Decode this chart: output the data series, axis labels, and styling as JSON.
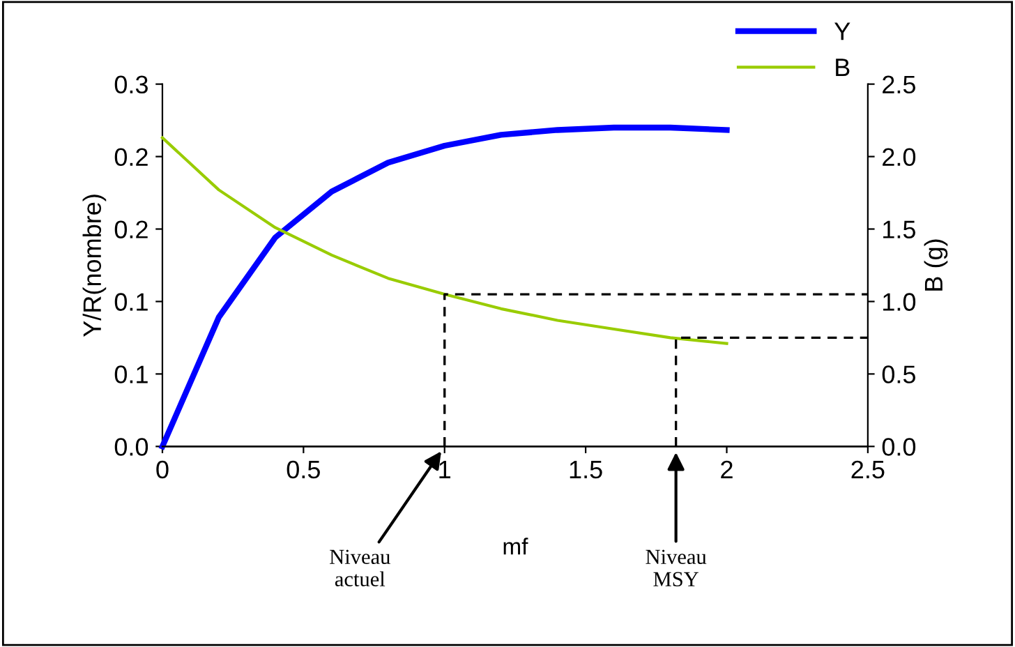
{
  "chart_data": {
    "type": "line",
    "xlabel": "mf",
    "ylabel": "Y/R(nombre)",
    "y2label": "B (g)",
    "x": [
      0,
      0.2,
      0.4,
      0.6,
      0.8,
      1.0,
      1.2,
      1.4,
      1.6,
      1.8,
      2.0
    ],
    "series": [
      {
        "name": "Y",
        "color": "#0000ff",
        "values": [
          0,
          0.107,
          0.173,
          0.211,
          0.235,
          0.249,
          0.258,
          0.262,
          0.264,
          0.264,
          0.262
        ]
      },
      {
        "name": "B",
        "color": "#99cc00",
        "axis": "y2",
        "values": [
          2.13,
          1.77,
          1.51,
          1.32,
          1.16,
          1.05,
          0.95,
          0.87,
          0.81,
          0.75,
          0.71
        ]
      },
      {
        "type": "line",
        "color": "#000000",
        "line_style": "dashed",
        "axis": "y2",
        "x": [
          1,
          1,
          2.5
        ],
        "values": [
          0,
          1.05,
          1.05
        ]
      },
      {
        "type": "line",
        "color": "#000000",
        "line_style": "dashed",
        "axis": "y2",
        "x": [
          1.82,
          1.82,
          2.5
        ],
        "values": [
          0,
          0.75,
          0.75
        ]
      }
    ],
    "xlim": [
      0,
      2.5
    ],
    "xticks": [
      0,
      0.5,
      1,
      1.5,
      2,
      2.5
    ],
    "ylim": [
      0,
      0.3
    ],
    "yticks": [
      {
        "value": 0,
        "label": "0.0"
      },
      {
        "value": 0.06,
        "label": "0.1"
      },
      {
        "value": 0.12,
        "label": "0.1"
      },
      {
        "value": 0.18,
        "label": "0.2"
      },
      {
        "value": 0.24,
        "label": "0.2"
      },
      {
        "value": 0.3,
        "label": "0.3"
      }
    ],
    "y2lim": [
      0,
      2.5
    ],
    "y2ticks": [
      {
        "value": 0,
        "label": "0.0"
      },
      {
        "value": 0.5,
        "label": "0.5"
      },
      {
        "value": 1.0,
        "label": "1.0"
      },
      {
        "value": 1.5,
        "label": "1.5"
      },
      {
        "value": 2.0,
        "label": "2.0"
      },
      {
        "value": 2.5,
        "label": "2.5"
      }
    ],
    "annotations": [
      {
        "text": "Niveau\nactuel",
        "x": 1,
        "y": 0
      },
      {
        "text": "Niveau\nMSY",
        "x": 1.82,
        "y": 0
      }
    ],
    "grid": false,
    "legend": "top right",
    "marker": "none"
  }
}
